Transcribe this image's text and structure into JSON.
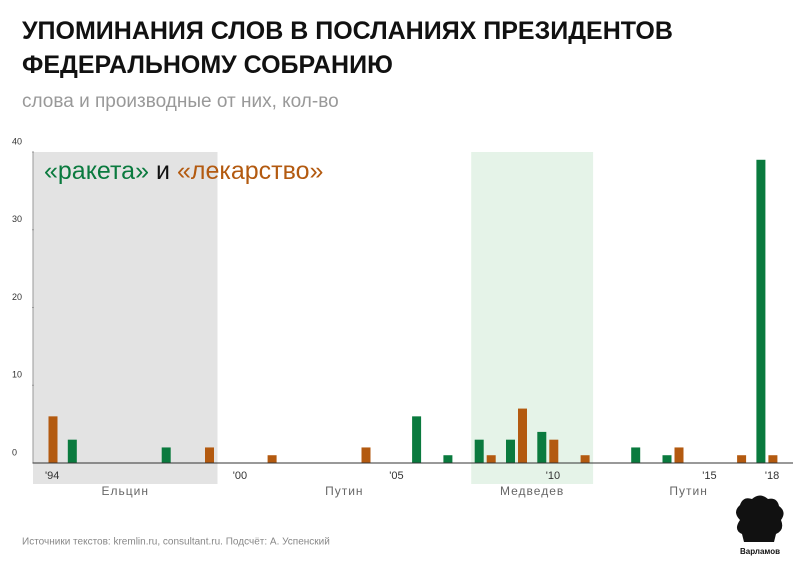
{
  "chart_data": {
    "type": "bar",
    "title": "УПОМИНАНИЯ СЛОВ В ПОСЛАНИЯХ ПРЕЗИДЕНТОВ ФЕДЕРАЛЬНОМУ СОБРАНИЮ",
    "subtitle": "слова и производные от них, кол-во",
    "categories": [
      "'94",
      null,
      null,
      null,
      null,
      null,
      "'00",
      null,
      null,
      null,
      null,
      "'05",
      null,
      null,
      null,
      null,
      "'10",
      null,
      null,
      null,
      null,
      "'15",
      null,
      "'18"
    ],
    "series": [
      {
        "name": "«ракета»",
        "color": "#0a7a3e",
        "values": [
          0,
          3,
          0,
          0,
          2,
          0,
          0,
          0,
          0,
          0,
          0,
          0,
          6,
          1,
          3,
          3,
          4,
          0,
          0,
          2,
          1,
          0,
          0,
          39
        ]
      },
      {
        "name": "«лекарство»",
        "color": "#b35a10",
        "values": [
          6,
          0,
          0,
          0,
          0,
          2,
          0,
          1,
          0,
          0,
          2,
          0,
          0,
          0,
          1,
          7,
          3,
          1,
          0,
          0,
          2,
          0,
          1,
          1
        ]
      }
    ],
    "legend_joiner": "и",
    "periods": [
      {
        "name": "Ельцин",
        "start": 0,
        "end": 5,
        "shade": "#e3e3e3"
      },
      {
        "name": "Путин",
        "start": 6,
        "end": 13
      },
      {
        "name": "Медведев",
        "start": 14,
        "end": 17,
        "shade": "#e5f3e8"
      },
      {
        "name": "Путин",
        "start": 18,
        "end": 23
      }
    ],
    "ylim": [
      0,
      40
    ],
    "yticks": [
      0,
      10,
      20,
      30,
      40
    ],
    "source": "Источники текстов: kremlin.ru, consultant.ru. Подсчёт: А. Успенский",
    "logo": "Варламов"
  }
}
